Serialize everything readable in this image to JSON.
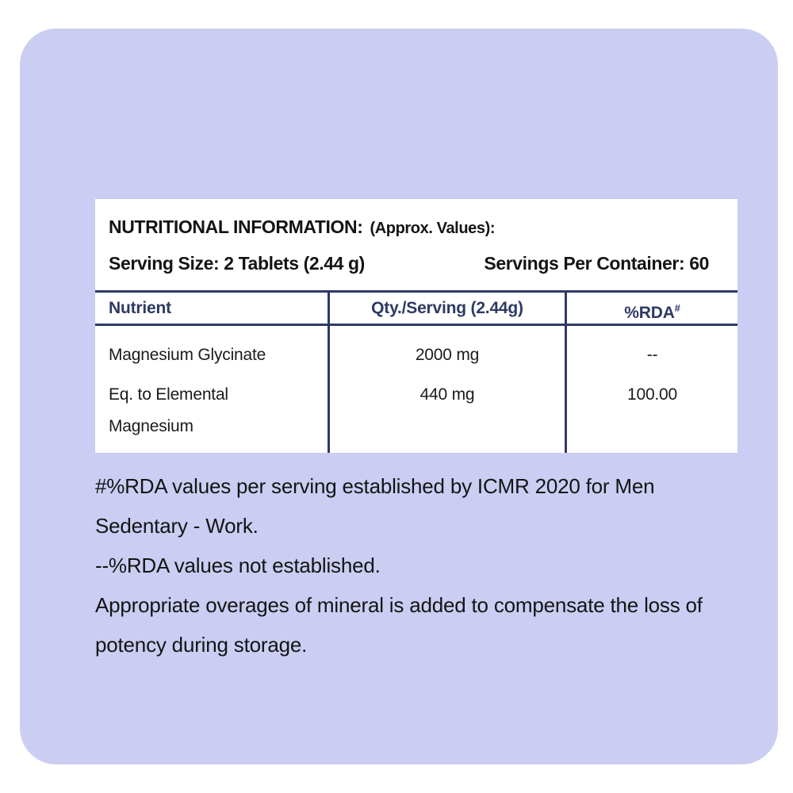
{
  "label": {
    "title_bold": "NUTRITIONAL INFORMATION:",
    "title_normal": "(Approx. Values):",
    "serving_size": "Serving Size: 2 Tablets (2.44 g)",
    "servings_per_container": "Servings Per Container: 60"
  },
  "table": {
    "headers": [
      "Nutrient",
      "Qty./Serving (2.44g)",
      "%RDA"
    ],
    "rda_superscript": "#",
    "rows": [
      {
        "nutrient": "Magnesium Glycinate",
        "qty": "2000 mg",
        "rda": "--"
      },
      {
        "nutrient": "Eq. to Elemental Magnesium",
        "qty": "440 mg",
        "rda": "100.00"
      }
    ]
  },
  "footnotes": {
    "lines": [
      "#%RDA values per serving established by ICMR 2020 for Men Sedentary - Work.",
      "--%RDA values not established.",
      "Appropriate overages of mineral is added to compensate the loss of potency during storage."
    ]
  },
  "colors": {
    "card_background": "#cbcef2",
    "panel_background": "#ffffff",
    "table_line_navy": "#2e3a64",
    "header_text_navy": "#2e3a64",
    "body_text": "#1b1b1b"
  }
}
